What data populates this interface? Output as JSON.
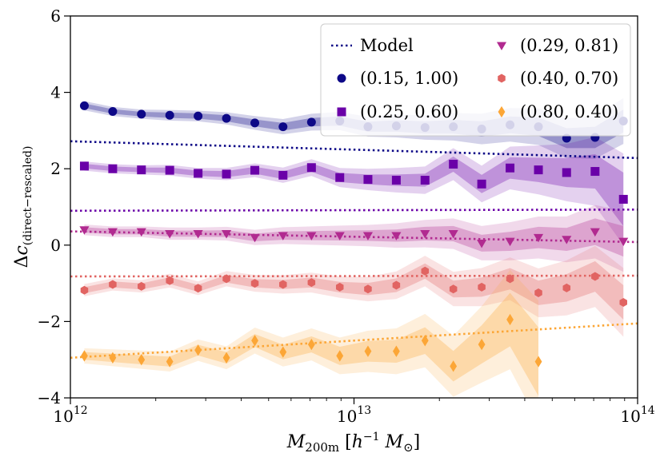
{
  "chart_data": {
    "type": "scatter",
    "title": "",
    "xlabel": "M_200m [h^-1 M_sun]",
    "ylabel": "Δc_(direct−rescaled)",
    "xscale": "log",
    "xlim": [
      1000000000000.0,
      100000000000000.0
    ],
    "ylim": [
      -4,
      6
    ],
    "x_ticks": [
      {
        "value": 1000000000000.0,
        "base": "10",
        "exp": "12"
      },
      {
        "value": 10000000000000.0,
        "base": "10",
        "exp": "13"
      },
      {
        "value": 100000000000000.0,
        "base": "10",
        "exp": "14"
      }
    ],
    "y_ticks": [
      {
        "value": -4,
        "label": "−4"
      },
      {
        "value": -2,
        "label": "−2"
      },
      {
        "value": 0,
        "label": "0"
      },
      {
        "value": 2,
        "label": "2"
      },
      {
        "value": 4,
        "label": "4"
      },
      {
        "value": 6,
        "label": "6"
      }
    ],
    "legend": {
      "position": "top-right",
      "model_label": "Model",
      "entries": [
        "(0.15, 1.00)",
        "(0.25, 0.60)",
        "(0.80, 0.40)",
        "(0.29, 0.81)",
        "(0.40, 0.70)"
      ]
    },
    "series": [
      {
        "name": "(0.15, 1.00)",
        "color": "#0d0887",
        "marker": "circle",
        "x": [
          1120000000000.0,
          1410000000000.0,
          1780000000000.0,
          2240000000000.0,
          2820000000000.0,
          3550000000000.0,
          4470000000000.0,
          5620000000000.0,
          7080000000000.0,
          8910000000000.0,
          11200000000000.0,
          14100000000000.0,
          17800000000000.0,
          22400000000000.0,
          28200000000000.0,
          35500000000000.0,
          44700000000000.0,
          56200000000000.0,
          70800000000000.0,
          89100000000000.0
        ],
        "y": [
          3.65,
          3.5,
          3.43,
          3.4,
          3.38,
          3.32,
          3.2,
          3.1,
          3.22,
          3.25,
          3.1,
          3.12,
          3.08,
          3.1,
          3.04,
          3.15,
          3.1,
          2.8,
          2.82,
          3.25
        ],
        "band_inner": [
          0.06,
          0.06,
          0.06,
          0.07,
          0.07,
          0.08,
          0.09,
          0.1,
          0.11,
          0.12,
          0.13,
          0.15,
          0.16,
          0.18,
          0.2,
          0.22,
          0.24,
          0.26,
          0.28,
          0.3
        ],
        "band_outer": [
          0.12,
          0.12,
          0.12,
          0.14,
          0.14,
          0.16,
          0.18,
          0.2,
          0.22,
          0.24,
          0.26,
          0.3,
          0.32,
          0.36,
          0.4,
          0.44,
          0.48,
          0.52,
          0.56,
          0.6
        ],
        "model": {
          "x": [
            1000000000000.0,
            100000000000000.0
          ],
          "y": [
            2.72,
            2.28
          ]
        }
      },
      {
        "name": "(0.25, 0.60)",
        "color": "#6a00a8",
        "marker": "square",
        "x": [
          1120000000000.0,
          1410000000000.0,
          1780000000000.0,
          2240000000000.0,
          2820000000000.0,
          3550000000000.0,
          4470000000000.0,
          5620000000000.0,
          7080000000000.0,
          8910000000000.0,
          11200000000000.0,
          14100000000000.0,
          17800000000000.0,
          22400000000000.0,
          28200000000000.0,
          35500000000000.0,
          44700000000000.0,
          56200000000000.0,
          70800000000000.0,
          89100000000000.0
        ],
        "y": [
          2.07,
          2.0,
          1.97,
          1.96,
          1.88,
          1.86,
          1.96,
          1.83,
          2.03,
          1.77,
          1.72,
          1.7,
          1.7,
          2.12,
          1.6,
          2.02,
          1.97,
          1.9,
          1.93,
          1.2
        ],
        "band_inner": [
          0.06,
          0.06,
          0.06,
          0.07,
          0.07,
          0.08,
          0.09,
          0.1,
          0.11,
          0.12,
          0.13,
          0.15,
          0.17,
          0.2,
          0.24,
          0.28,
          0.32,
          0.38,
          0.45,
          0.7
        ],
        "band_outer": [
          0.12,
          0.12,
          0.12,
          0.14,
          0.14,
          0.16,
          0.18,
          0.2,
          0.22,
          0.25,
          0.28,
          0.32,
          0.36,
          0.42,
          0.48,
          0.56,
          0.64,
          0.75,
          0.9,
          1.2
        ],
        "model": {
          "x": [
            1000000000000.0,
            100000000000000.0
          ],
          "y": [
            0.9,
            0.93
          ]
        }
      },
      {
        "name": "(0.29, 0.81)",
        "color": "#b12a90",
        "marker": "triangle-down",
        "x": [
          1120000000000.0,
          1410000000000.0,
          1780000000000.0,
          2240000000000.0,
          2820000000000.0,
          3550000000000.0,
          4470000000000.0,
          5620000000000.0,
          7080000000000.0,
          8910000000000.0,
          11200000000000.0,
          14100000000000.0,
          17800000000000.0,
          22400000000000.0,
          28200000000000.0,
          35500000000000.0,
          44700000000000.0,
          56200000000000.0,
          70800000000000.0,
          89100000000000.0
        ],
        "y": [
          0.4,
          0.35,
          0.35,
          0.3,
          0.3,
          0.3,
          0.2,
          0.25,
          0.25,
          0.25,
          0.25,
          0.25,
          0.3,
          0.3,
          0.05,
          0.1,
          0.2,
          0.15,
          0.35,
          0.1
        ],
        "band_inner": [
          0.07,
          0.07,
          0.07,
          0.08,
          0.08,
          0.09,
          0.1,
          0.11,
          0.12,
          0.13,
          0.14,
          0.16,
          0.18,
          0.2,
          0.22,
          0.25,
          0.28,
          0.3,
          0.35,
          0.4
        ],
        "band_outer": [
          0.14,
          0.14,
          0.14,
          0.16,
          0.16,
          0.18,
          0.2,
          0.22,
          0.24,
          0.26,
          0.28,
          0.32,
          0.36,
          0.4,
          0.45,
          0.5,
          0.55,
          0.6,
          0.7,
          0.8
        ],
        "model": {
          "x": [
            1000000000000.0,
            100000000000000.0
          ],
          "y": [
            0.36,
            0.08
          ]
        }
      },
      {
        "name": "(0.40, 0.70)",
        "color": "#e16462",
        "marker": "hexagon",
        "x": [
          1120000000000.0,
          1410000000000.0,
          1780000000000.0,
          2240000000000.0,
          2820000000000.0,
          3550000000000.0,
          4470000000000.0,
          5620000000000.0,
          7080000000000.0,
          8910000000000.0,
          11200000000000.0,
          14100000000000.0,
          17800000000000.0,
          22400000000000.0,
          28200000000000.0,
          35500000000000.0,
          44700000000000.0,
          56200000000000.0,
          70800000000000.0,
          89100000000000.0
        ],
        "y": [
          -1.18,
          -1.03,
          -1.08,
          -0.93,
          -1.13,
          -0.88,
          -1.0,
          -1.03,
          -0.98,
          -1.1,
          -1.15,
          -1.05,
          -0.68,
          -1.15,
          -1.1,
          -0.88,
          -1.25,
          -1.12,
          -0.82,
          -1.5
        ],
        "band_inner": [
          0.08,
          0.08,
          0.08,
          0.09,
          0.09,
          0.1,
          0.11,
          0.12,
          0.13,
          0.14,
          0.16,
          0.18,
          0.2,
          0.22,
          0.25,
          0.28,
          0.32,
          0.36,
          0.4,
          0.45
        ],
        "band_outer": [
          0.16,
          0.16,
          0.16,
          0.18,
          0.18,
          0.2,
          0.22,
          0.24,
          0.26,
          0.28,
          0.32,
          0.36,
          0.4,
          0.45,
          0.5,
          0.56,
          0.64,
          0.72,
          0.8,
          0.9
        ],
        "model": {
          "x": [
            1000000000000.0,
            100000000000000.0
          ],
          "y": [
            -0.82,
            -0.8
          ]
        }
      },
      {
        "name": "(0.80, 0.40)",
        "color": "#fca636",
        "marker": "diamond",
        "x": [
          1120000000000.0,
          1410000000000.0,
          1780000000000.0,
          2240000000000.0,
          2820000000000.0,
          3550000000000.0,
          4470000000000.0,
          5620000000000.0,
          7080000000000.0,
          8910000000000.0,
          11200000000000.0,
          14100000000000.0,
          17800000000000.0,
          22400000000000.0,
          28200000000000.0,
          35500000000000.0,
          44700000000000.0
        ],
        "y": [
          -2.9,
          -2.95,
          -3.0,
          -3.05,
          -2.75,
          -2.95,
          -2.5,
          -2.8,
          -2.6,
          -2.9,
          -2.78,
          -2.78,
          -2.5,
          -3.17,
          -2.6,
          -1.95,
          -3.05
        ],
        "band_inner": [
          0.1,
          0.11,
          0.12,
          0.13,
          0.14,
          0.15,
          0.17,
          0.19,
          0.21,
          0.24,
          0.27,
          0.3,
          0.35,
          0.4,
          0.5,
          0.7,
          0.9
        ],
        "band_outer": [
          0.2,
          0.22,
          0.24,
          0.26,
          0.28,
          0.3,
          0.34,
          0.38,
          0.42,
          0.48,
          0.54,
          0.6,
          0.7,
          0.8,
          1.0,
          1.3,
          1.6
        ],
        "model": {
          "x": [
            1000000000000.0,
            100000000000000.0
          ],
          "y": [
            -2.95,
            -2.05
          ]
        }
      }
    ]
  }
}
